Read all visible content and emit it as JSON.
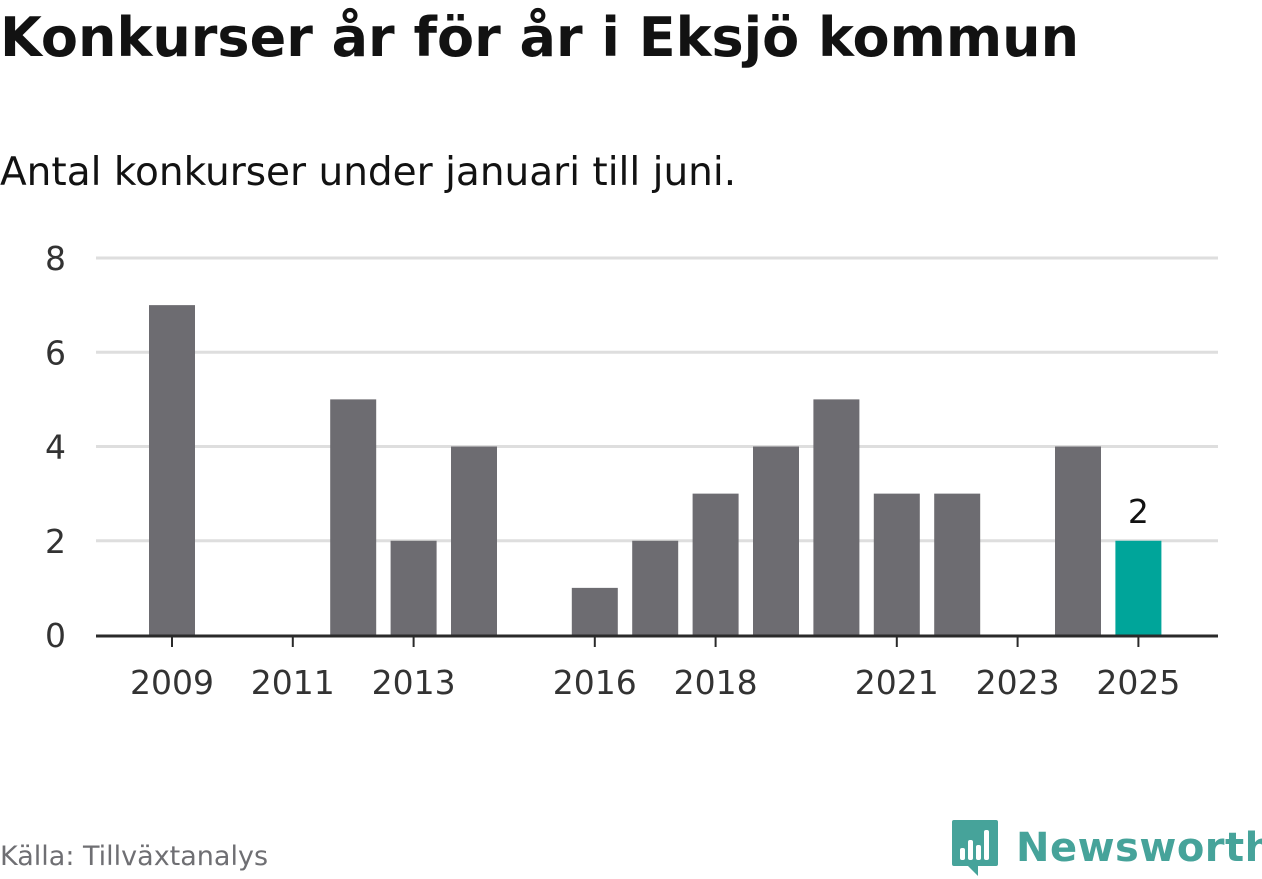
{
  "colors": {
    "bar": "#6d6c71",
    "highlight": "#00a59a",
    "grid": "#dedede",
    "axis": "#2a2a2a",
    "text": "#121212",
    "source": "#6f6f73",
    "brand": "#46a39a"
  },
  "source": "Källa: Tillväxtanalys",
  "brand": {
    "name": "Newsworthy",
    "icon": "bar-chart-speech-bubble-icon"
  },
  "chart_data": {
    "type": "bar",
    "title": "Konkurser år för år i Eksjö kommun",
    "subtitle": "Antal konkurser under januari till juni.",
    "xlabel": "",
    "ylabel": "",
    "categories": [
      "2009",
      "2010",
      "2011",
      "2012",
      "2013",
      "2014",
      "2015",
      "2016",
      "2017",
      "2018",
      "2019",
      "2020",
      "2021",
      "2022",
      "2023",
      "2024",
      "2025"
    ],
    "values": [
      7,
      0,
      0,
      5,
      2,
      4,
      0,
      1,
      2,
      3,
      4,
      5,
      3,
      3,
      0,
      4,
      2
    ],
    "highlight_index": 16,
    "highlight_label": "2",
    "ylim": [
      0,
      8
    ],
    "yticks": [
      "0",
      "2",
      "4",
      "6",
      "8"
    ],
    "xtick_labels": [
      "2009",
      "2011",
      "2013",
      "2016",
      "2018",
      "2021",
      "2023",
      "2025"
    ],
    "grid": true,
    "legend": "none"
  }
}
